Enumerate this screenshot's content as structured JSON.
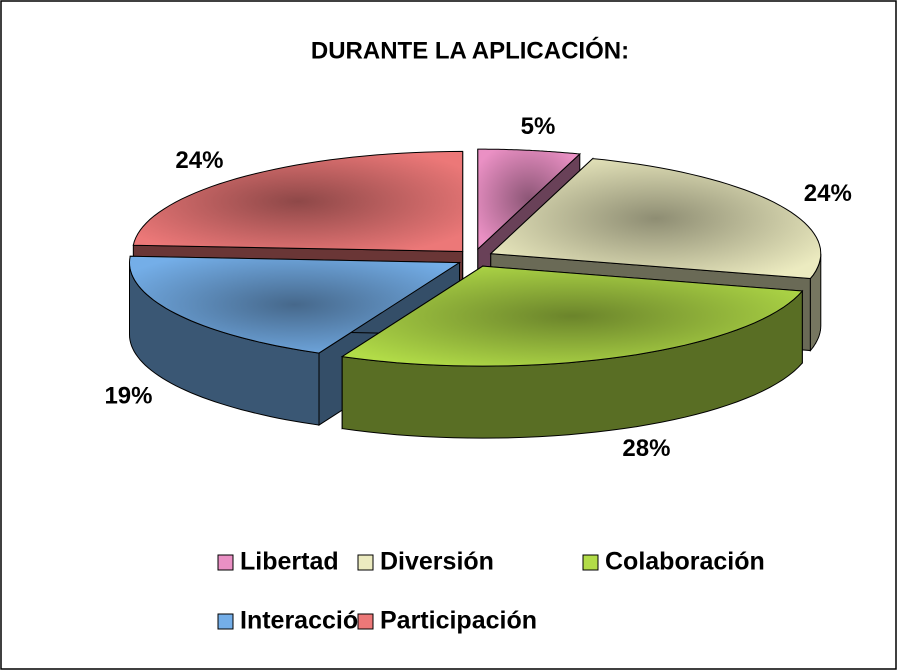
{
  "chart_data": {
    "type": "pie3d",
    "title": "DURANTE LA APLICACIÓN:",
    "categories": [
      "Libertad",
      "Diversión",
      "Colaboración",
      "Interacción",
      "Participación"
    ],
    "values": [
      5,
      24,
      28,
      19,
      24
    ],
    "value_labels": [
      "5%",
      "24%",
      "28%",
      "19%",
      "24%"
    ],
    "colors": [
      "#ea90c4",
      "#ecebc0",
      "#b2dc48",
      "#74aee8",
      "#ec7878"
    ],
    "legend": "bottom"
  }
}
